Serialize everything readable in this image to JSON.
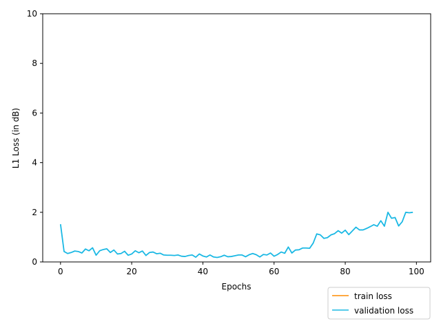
{
  "chart_data": {
    "type": "line",
    "title": "",
    "xlabel": "Epochs",
    "ylabel": "L1 Loss (in dB)",
    "xlim": [
      -5,
      104
    ],
    "ylim": [
      0,
      10
    ],
    "xticks": [
      0,
      20,
      40,
      60,
      80,
      100
    ],
    "yticks": [
      0,
      2,
      4,
      6,
      8,
      10
    ],
    "grid": false,
    "legend_position": "below-right",
    "series": [
      {
        "name": "train loss",
        "color": "#ff8c00",
        "x": [],
        "y": []
      },
      {
        "name": "validation loss",
        "color": "#1ab8e4",
        "x": [
          0,
          1,
          2,
          3,
          4,
          5,
          6,
          7,
          8,
          9,
          10,
          11,
          12,
          13,
          14,
          15,
          16,
          17,
          18,
          19,
          20,
          21,
          22,
          23,
          24,
          25,
          26,
          27,
          28,
          29,
          30,
          31,
          32,
          33,
          34,
          35,
          36,
          37,
          38,
          39,
          40,
          41,
          42,
          43,
          44,
          45,
          46,
          47,
          48,
          49,
          50,
          51,
          52,
          53,
          54,
          55,
          56,
          57,
          58,
          59,
          60,
          61,
          62,
          63,
          64,
          65,
          66,
          67,
          68,
          69,
          70,
          71,
          72,
          73,
          74,
          75,
          76,
          77,
          78,
          79,
          80,
          81,
          82,
          83,
          84,
          85,
          86,
          87,
          88,
          89,
          90,
          91,
          92,
          93,
          94,
          95,
          96,
          97,
          98,
          99
        ],
        "y": [
          1.52,
          0.42,
          0.34,
          0.38,
          0.44,
          0.42,
          0.36,
          0.52,
          0.45,
          0.57,
          0.27,
          0.45,
          0.5,
          0.53,
          0.38,
          0.48,
          0.32,
          0.34,
          0.43,
          0.27,
          0.32,
          0.45,
          0.37,
          0.44,
          0.26,
          0.38,
          0.4,
          0.33,
          0.35,
          0.28,
          0.27,
          0.27,
          0.26,
          0.28,
          0.23,
          0.22,
          0.26,
          0.28,
          0.19,
          0.32,
          0.24,
          0.2,
          0.28,
          0.2,
          0.18,
          0.21,
          0.27,
          0.21,
          0.22,
          0.25,
          0.28,
          0.28,
          0.21,
          0.29,
          0.34,
          0.29,
          0.2,
          0.3,
          0.28,
          0.36,
          0.23,
          0.3,
          0.4,
          0.35,
          0.6,
          0.36,
          0.48,
          0.49,
          0.56,
          0.56,
          0.55,
          0.76,
          1.13,
          1.09,
          0.95,
          0.98,
          1.09,
          1.14,
          1.26,
          1.16,
          1.28,
          1.1,
          1.25,
          1.4,
          1.29,
          1.29,
          1.35,
          1.42,
          1.5,
          1.44,
          1.66,
          1.44,
          2.0,
          1.76,
          1.79,
          1.45,
          1.62,
          2.0,
          1.98,
          2.0
        ]
      }
    ]
  }
}
